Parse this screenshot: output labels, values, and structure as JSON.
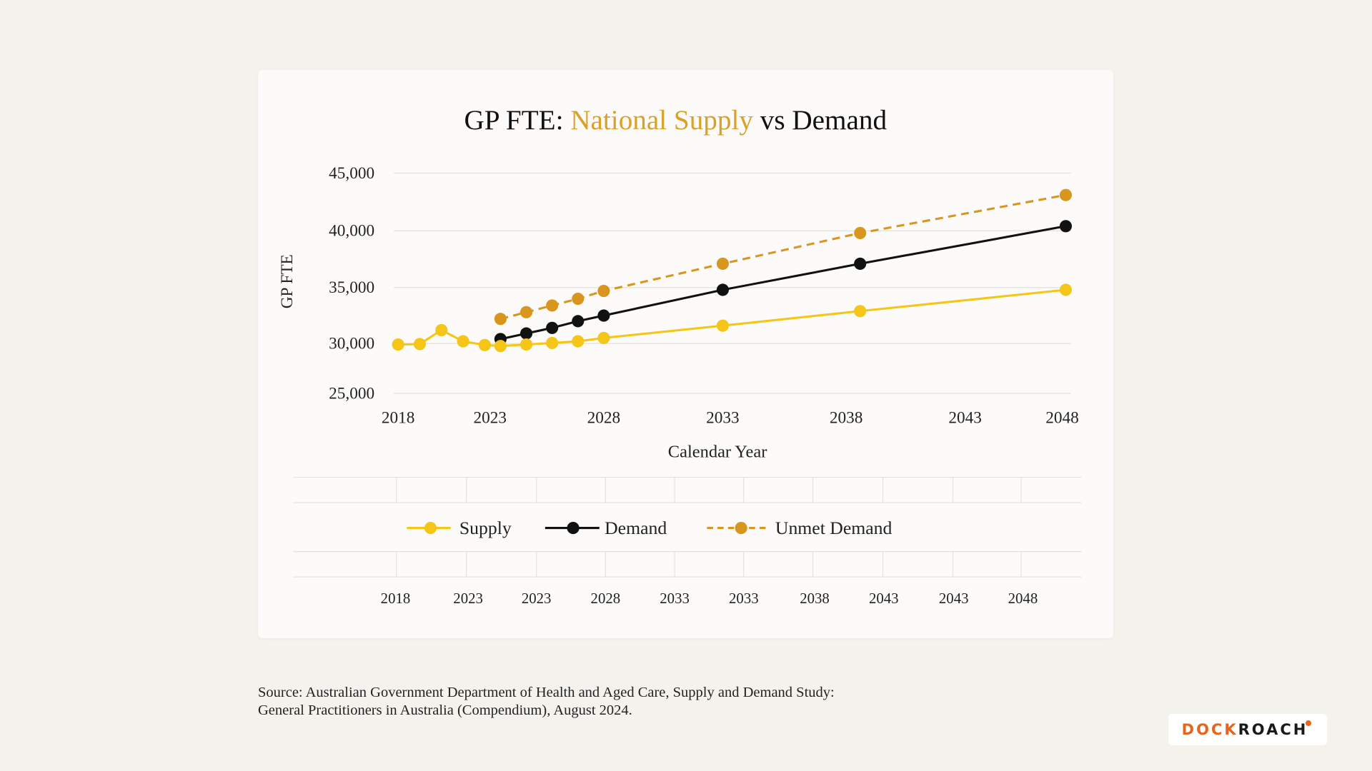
{
  "colors": {
    "supply": "#f5c518",
    "demand": "#111111",
    "unmet": "#d9961f",
    "title_accent": "#d9a02a",
    "background": "#f4f2ed",
    "card": "#fcfbf9"
  },
  "chart_data": {
    "type": "line",
    "title_parts": [
      "GP FTE: ",
      "National Supply",
      " vs Demand"
    ],
    "xlabel": "Calendar Year",
    "ylabel": "GP FTE",
    "x_ticks": [
      "2018",
      "2023",
      "2028",
      "2033",
      "2038",
      "2043",
      "2048"
    ],
    "y_ticks": [
      "45,000",
      "40,000",
      "35,000",
      "30,000",
      "25,000"
    ],
    "ylim": [
      25000,
      45000
    ],
    "grid": "horizontal",
    "legend_position": "bottom",
    "series": [
      {
        "name": "Supply",
        "style": "solid",
        "x": [
          2018,
          2019,
          2020,
          2021,
          2022,
          2023,
          2024,
          2025,
          2026,
          2027,
          2033,
          2038,
          2048
        ],
        "values": [
          29900,
          29950,
          31200,
          30200,
          29850,
          29750,
          29900,
          30050,
          30200,
          30500,
          31600,
          32900,
          34800
        ]
      },
      {
        "name": "Demand",
        "style": "solid",
        "x": [
          2023,
          2024,
          2025,
          2026,
          2027,
          2033,
          2038,
          2048
        ],
        "values": [
          30400,
          30900,
          31400,
          32000,
          32500,
          34800,
          37100,
          40400
        ]
      },
      {
        "name": "Unmet Demand",
        "style": "dashed",
        "x": [
          2023,
          2024,
          2025,
          2026,
          2027,
          2033,
          2038,
          2048
        ],
        "values": [
          32200,
          32800,
          33400,
          34000,
          34700,
          37100,
          39800,
          43100
        ]
      }
    ],
    "secondary_x_ticks": [
      "2018",
      "2023",
      "2023",
      "2028",
      "2033",
      "2033",
      "2038",
      "2043",
      "2043",
      "2048"
    ]
  },
  "source": "Source: Australian Government Department of Health and Aged Care, Supply and Demand Study: General Practitioners in Australia (Compendium), August 2024.",
  "logo": {
    "part1": "DOCK",
    "part2": "ROACH"
  }
}
